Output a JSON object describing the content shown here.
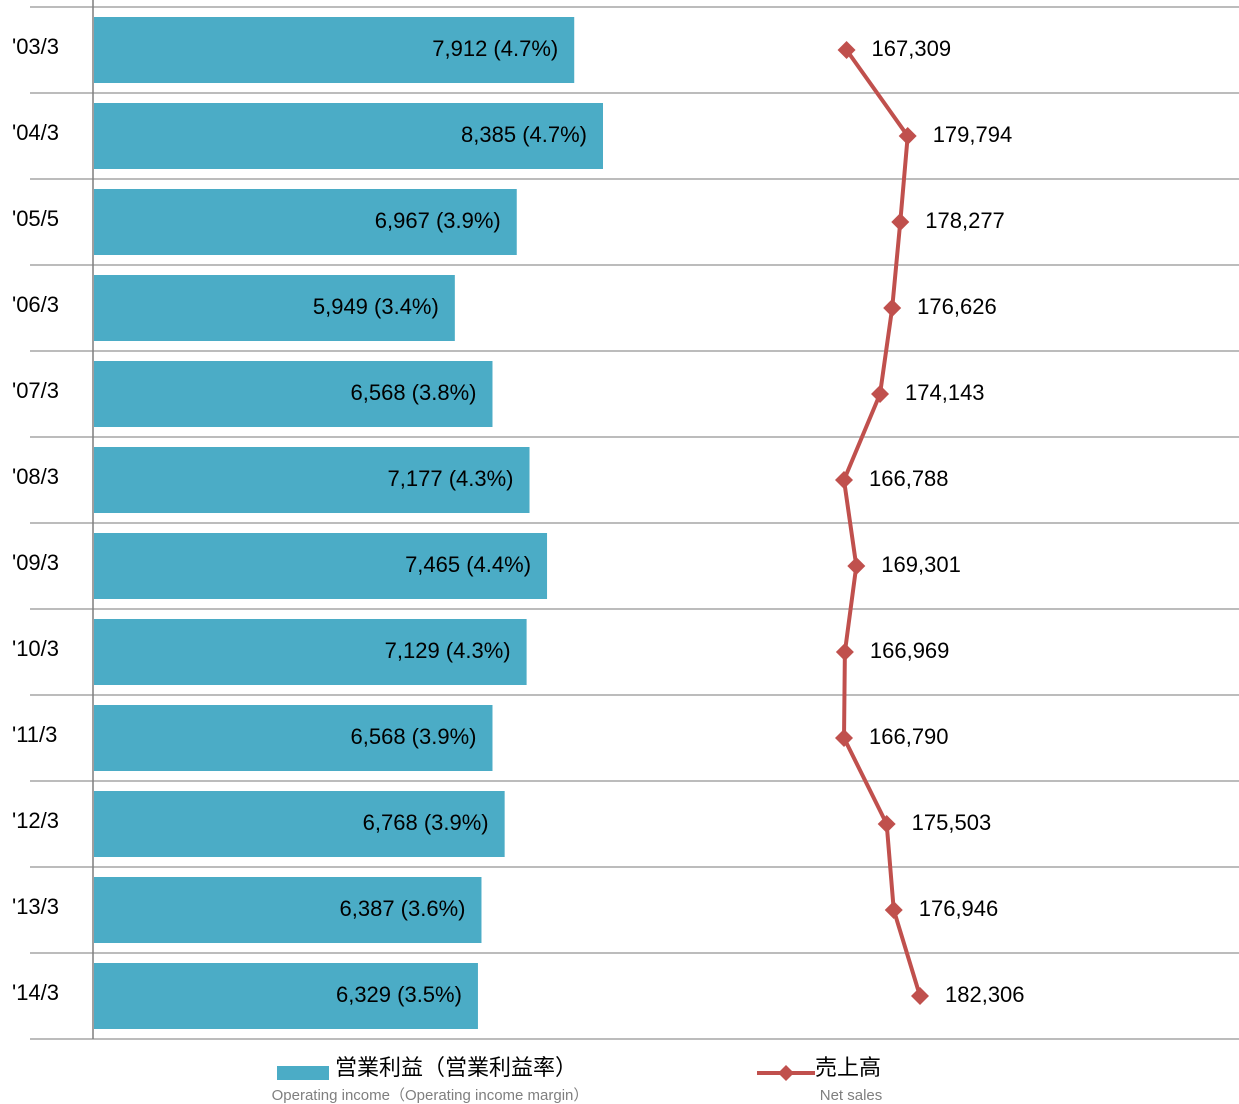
{
  "chart_data": {
    "type": "bar+line",
    "categories": [
      "'03/3",
      "'04/3",
      "'05/5",
      "'06/3",
      "'07/3",
      "'08/3",
      "'09/3",
      "'10/3",
      "'11/3",
      "'12/3",
      "'13/3",
      "'14/3"
    ],
    "series": [
      {
        "name": "営業利益（営業利益率）",
        "name_en": "Operating income（Operating income margin）",
        "type": "bar",
        "color": "#4bacc6",
        "values": [
          7912,
          8385,
          6967,
          5949,
          6568,
          7177,
          7465,
          7129,
          6568,
          6768,
          6387,
          6329
        ],
        "value_labels": [
          "7,912 (4.7%)",
          "8,385 (4.7%)",
          "6,967 (3.9%)",
          "5,949 (3.4%)",
          "6,568 (3.8%)",
          "7,177 (4.3%)",
          "7,465 (4.4%)",
          "7,129 (4.3%)",
          "6,568 (3.9%)",
          "6,768 (3.9%)",
          "6,387 (3.6%)",
          "6,329 (3.5%)"
        ]
      },
      {
        "name": "売上高",
        "name_en": "Net sales",
        "type": "line",
        "color": "#c0504d",
        "values": [
          167309,
          179794,
          178277,
          176626,
          174143,
          166788,
          169301,
          166969,
          166790,
          175503,
          176946,
          182306
        ],
        "value_labels": [
          "167,309",
          "179,794",
          "178,277",
          "176,626",
          "174,143",
          "166,788",
          "169,301",
          "166,969",
          "166,790",
          "175,503",
          "176,946",
          "182,306"
        ]
      }
    ],
    "grid": true
  }
}
